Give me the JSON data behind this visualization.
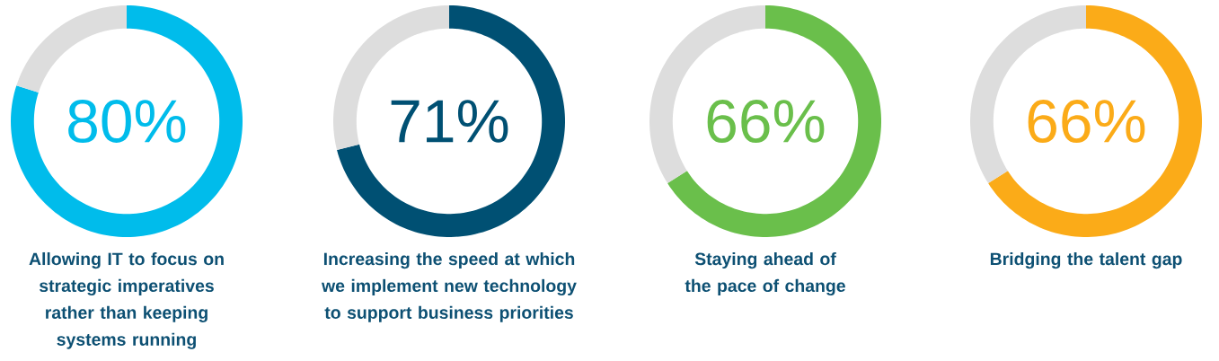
{
  "chart_data": [
    {
      "type": "donut",
      "title": "Allowing IT to focus on strategic imperatives rather than keeping systems running",
      "categories": [
        null,
        null
      ],
      "values": [
        80,
        20
      ],
      "colors": [
        "#00bceb",
        "#dddddd"
      ],
      "value_labels": [
        "80%",
        null
      ]
    },
    {
      "type": "donut",
      "title": "Increasing the speed at which we implement new technology to support business priorities",
      "categories": [
        null,
        null
      ],
      "values": [
        71,
        29
      ],
      "colors": [
        "#005073",
        "#dddddd"
      ],
      "value_labels": [
        "71%",
        null
      ]
    },
    {
      "type": "donut",
      "title": "Staying ahead of the pace of change",
      "categories": [
        null,
        null
      ],
      "values": [
        66,
        34
      ],
      "colors": [
        "#6abf4b",
        "#dddddd"
      ],
      "value_labels": [
        "66%",
        null
      ]
    },
    {
      "type": "donut",
      "title": "Bridging the talent gap",
      "categories": [
        null,
        null
      ],
      "values": [
        66,
        34
      ],
      "colors": [
        "#fbab18",
        "#dddddd"
      ],
      "value_labels": [
        "66%",
        null
      ]
    }
  ]
}
